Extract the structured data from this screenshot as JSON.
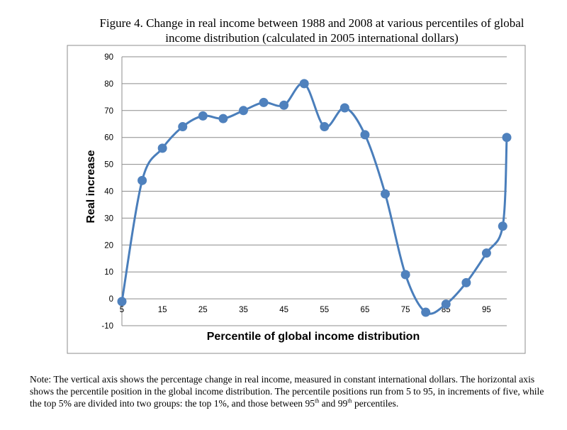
{
  "title_line1": "Figure 4. Change in real income between 1988 and 2008 at various percentiles of global",
  "title_line2": "income distribution (calculated in 2005 international dollars)",
  "note": {
    "part1": "Note: The vertical axis shows the percentage change in real income, measured in constant international dollars. The horizontal axis shows the percentile position in the global income distribution. The percentile positions run from 5 to 95, in increments of five, while the top 5% are divided into two groups: the top 1%, and those between 95",
    "sup1": "th",
    "part2": "  and 99",
    "sup2": "th",
    "part3": " percentiles."
  },
  "chart_data": {
    "type": "line",
    "title": "",
    "xlabel": "Percentile of global income distribution",
    "ylabel": "Real increase",
    "x_ticks": [
      5,
      15,
      25,
      35,
      45,
      55,
      65,
      75,
      85,
      95
    ],
    "y_ticks": [
      90,
      80,
      70,
      60,
      50,
      40,
      30,
      20,
      10,
      0,
      -10
    ],
    "xlim": [
      5,
      100
    ],
    "ylim": [
      -10,
      90
    ],
    "grid": "horizontal",
    "smooth": true,
    "line_color": "#4a7ebb",
    "marker_color": "#4f81bd",
    "series": [
      {
        "x": [
          5,
          10,
          15,
          20,
          25,
          30,
          35,
          40,
          45,
          50,
          55,
          60,
          65,
          70,
          75,
          80,
          85,
          90,
          95,
          99,
          100
        ],
        "values": [
          -1,
          44,
          56,
          64,
          68,
          67,
          70,
          73,
          72,
          80,
          64,
          71,
          61,
          39,
          9,
          -5,
          -2,
          6,
          17,
          27,
          60
        ]
      }
    ]
  }
}
